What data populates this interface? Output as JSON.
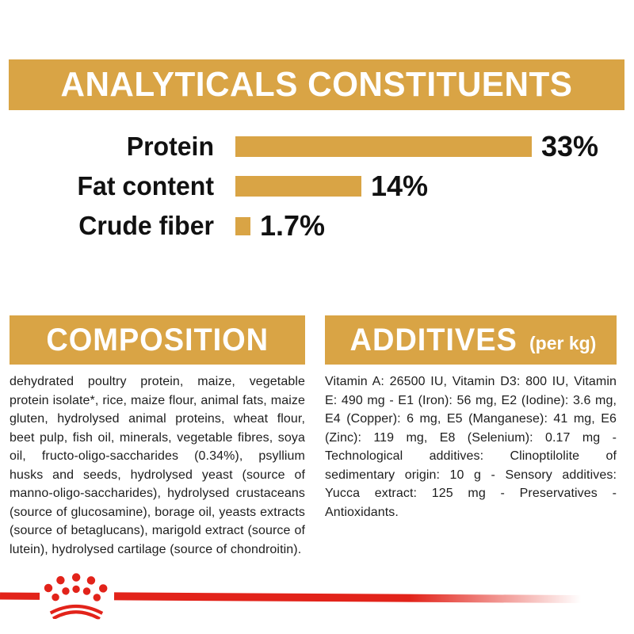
{
  "colors": {
    "gold": "#D9A445",
    "red": "#E2231A",
    "text": "#1d1d1d",
    "banner_text": "#ffffff"
  },
  "analyticals": {
    "title": "ANALYTICALS CONSTITUENTS"
  },
  "chart_data": {
    "type": "bar",
    "orientation": "horizontal",
    "title": "ANALYTICALS CONSTITUENTS",
    "categories": [
      "Protein",
      "Fat content",
      "Crude fiber"
    ],
    "values": [
      33,
      14,
      1.7
    ],
    "value_labels": [
      "33%",
      "14%",
      "1.7%"
    ],
    "unit": "%",
    "xlim": [
      0,
      33
    ],
    "bar_color": "#D9A445",
    "grid": false,
    "legend": false
  },
  "composition": {
    "title": "COMPOSITION",
    "text": "dehydrated poultry protein, maize, vegetable protein isolate*, rice, maize flour, animal fats, maize gluten, hydrolysed animal proteins, wheat flour, beet pulp, fish oil, minerals, vegetable fibres, soya oil, fructo-oligo-saccharides (0.34%), psyllium husks and seeds, hydrolysed yeast (source of manno-oligo-saccharides), hydrolysed crustaceans (source of glucosamine), borage oil, yeasts extracts (source of betaglucans), marigold extract (source of lutein), hydrolysed cartilage (source of chondroitin)."
  },
  "additives": {
    "title": "ADDITIVES",
    "title_suffix": "(per kg)",
    "text": "Vitamin A: 26500 IU, Vitamin D3: 800 IU, Vitamin E: 490 mg - E1 (Iron): 56 mg, E2 (Iodine): 3.6 mg, E4 (Copper): 6 mg, E5 (Manganese): 41 mg, E6 (Zinc): 119 mg, E8 (Selenium): 0.17 mg - Technological additives: Clinoptilolite of sedimentary origin: 10 g - Sensory additives: Yucca extract: 125 mg - Preservatives - Antioxidants."
  },
  "footer": {
    "logo": "royal-canin-crown"
  }
}
